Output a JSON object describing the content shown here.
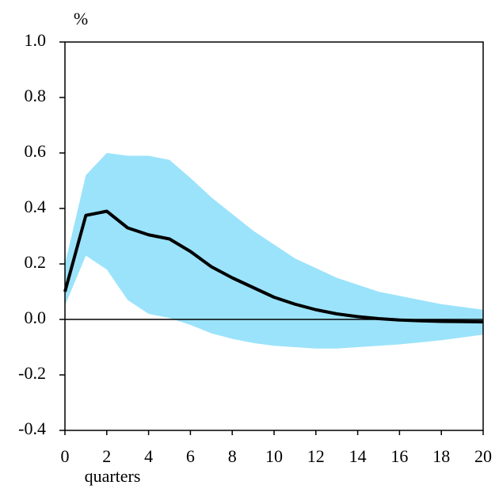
{
  "chart_data": {
    "type": "line",
    "y_label": "%",
    "x_label": "quarters",
    "x": [
      0,
      1,
      2,
      3,
      4,
      5,
      6,
      7,
      8,
      9,
      10,
      11,
      12,
      13,
      14,
      15,
      16,
      17,
      18,
      19,
      20
    ],
    "series": [
      {
        "color": "#000000",
        "values": [
          0.1,
          0.375,
          0.39,
          0.33,
          0.305,
          0.29,
          0.245,
          0.19,
          0.15,
          0.115,
          0.08,
          0.055,
          0.035,
          0.02,
          0.01,
          0.003,
          -0.002,
          -0.005,
          -0.007,
          -0.008,
          -0.009
        ]
      }
    ],
    "band": {
      "color": "#9be3fb",
      "upper": [
        0.2,
        0.52,
        0.6,
        0.59,
        0.59,
        0.575,
        0.51,
        0.44,
        0.38,
        0.32,
        0.27,
        0.22,
        0.185,
        0.15,
        0.125,
        0.1,
        0.085,
        0.07,
        0.055,
        0.045,
        0.035
      ],
      "lower": [
        0.05,
        0.23,
        0.18,
        0.07,
        0.02,
        0.005,
        -0.02,
        -0.05,
        -0.07,
        -0.085,
        -0.095,
        -0.1,
        -0.105,
        -0.105,
        -0.1,
        -0.095,
        -0.09,
        -0.083,
        -0.075,
        -0.065,
        -0.055
      ]
    },
    "xlim": [
      0,
      20
    ],
    "xticks": [
      0,
      2,
      4,
      6,
      8,
      10,
      12,
      14,
      16,
      18,
      20
    ],
    "ylim": [
      -0.4,
      1.0
    ],
    "yticks": [
      {
        "value": -0.4,
        "label": "-0.4"
      },
      {
        "value": -0.2,
        "label": "-0.2"
      },
      {
        "value": 0,
        "label": "0.0"
      },
      {
        "value": 0.2,
        "label": "0.2"
      },
      {
        "value": 0.4,
        "label": "0.4"
      },
      {
        "value": 0.6,
        "label": "0.6"
      },
      {
        "value": 0.8,
        "label": "0.8"
      },
      {
        "value": 1.0,
        "label": "1.0"
      }
    ],
    "grid": false
  }
}
